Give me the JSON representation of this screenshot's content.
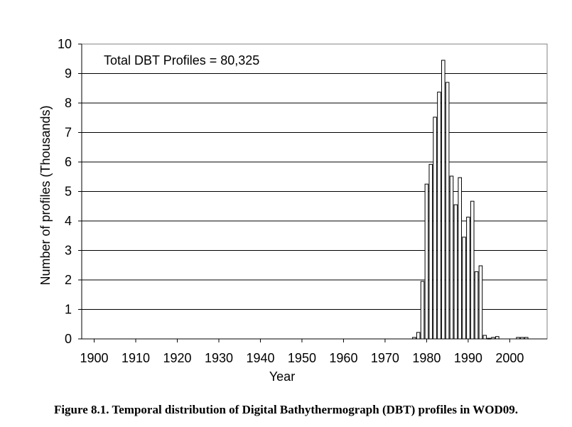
{
  "caption": "Figure 8.1. Temporal distribution of Digital Bathythermograph (DBT) profiles in WOD09.",
  "chart_data": {
    "type": "bar",
    "annotation": "Total DBT Profiles = 80,325",
    "xlabel": "Year",
    "ylabel": "Number of profiles (Thousands)",
    "xlim": [
      1897,
      2009
    ],
    "ylim": [
      0,
      10
    ],
    "xticks": [
      1900,
      1910,
      1920,
      1930,
      1940,
      1950,
      1960,
      1970,
      1980,
      1990,
      2000
    ],
    "yticks": [
      0,
      1,
      2,
      3,
      4,
      5,
      6,
      7,
      8,
      9,
      10
    ],
    "grid": true,
    "bar_color": "#ffffff",
    "bar_edge_color": "#000000",
    "years": [
      1977,
      1978,
      1979,
      1980,
      1981,
      1982,
      1983,
      1984,
      1985,
      1986,
      1987,
      1988,
      1989,
      1990,
      1991,
      1992,
      1993,
      1994,
      1995,
      1996,
      1997,
      2002,
      2003,
      2004
    ],
    "values": [
      0.05,
      0.22,
      1.95,
      5.25,
      5.92,
      7.52,
      8.37,
      9.45,
      8.7,
      5.52,
      4.55,
      5.47,
      3.45,
      4.13,
      4.67,
      2.28,
      2.48,
      0.12,
      0.02,
      0.05,
      0.08,
      0.05,
      0.05,
      0.05
    ]
  }
}
